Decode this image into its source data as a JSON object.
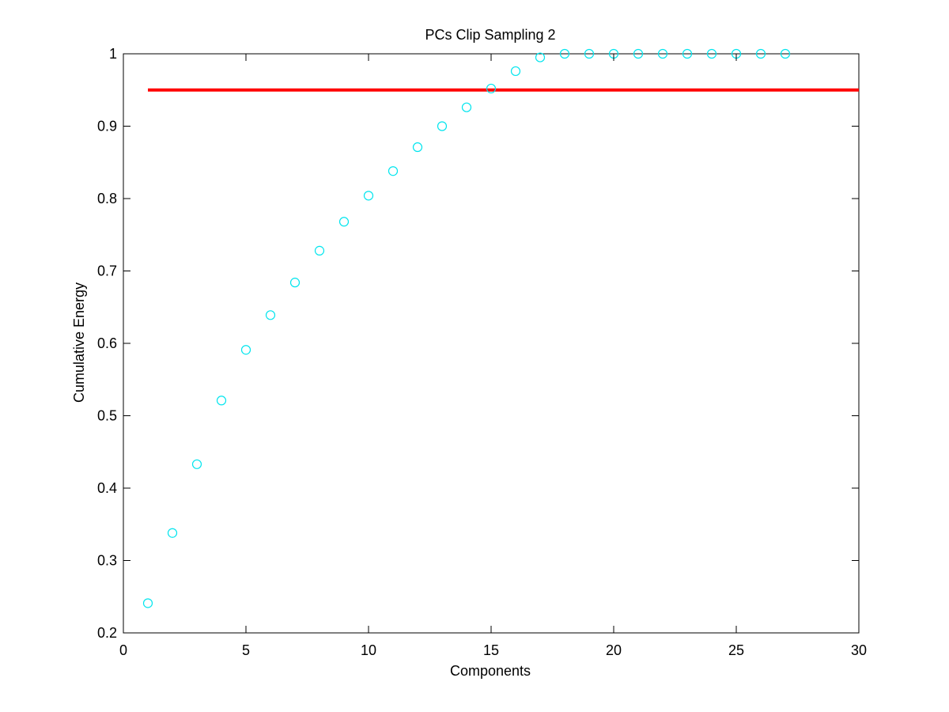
{
  "chart_data": {
    "type": "scatter",
    "title": "PCs Clip Sampling 2",
    "xlabel": "Components",
    "ylabel": "Cumulative Energy",
    "xlim": [
      0,
      30
    ],
    "ylim": [
      0.2,
      1
    ],
    "xticks": [
      0,
      5,
      10,
      15,
      20,
      25,
      30
    ],
    "xtick_labels": [
      "0",
      "5",
      "10",
      "15",
      "20",
      "25",
      "30"
    ],
    "yticks": [
      0.2,
      0.3,
      0.4,
      0.5,
      0.6,
      0.7,
      0.8,
      0.9,
      1
    ],
    "ytick_labels": [
      "0.2",
      "0.3",
      "0.4",
      "0.5",
      "0.6",
      "0.7",
      "0.8",
      "0.9",
      "1"
    ],
    "grid": false,
    "series": [
      {
        "marker": "circle",
        "color": "#00e5ee",
        "x": [
          1,
          2,
          3,
          4,
          5,
          6,
          7,
          8,
          9,
          10,
          11,
          12,
          13,
          14,
          15,
          16,
          17,
          18,
          19,
          20,
          21,
          22,
          23,
          24,
          25,
          26,
          27
        ],
        "y": [
          0.241,
          0.338,
          0.433,
          0.521,
          0.591,
          0.639,
          0.684,
          0.728,
          0.768,
          0.804,
          0.838,
          0.871,
          0.9,
          0.926,
          0.952,
          0.976,
          0.995,
          1.0,
          1.0,
          1.0,
          1.0,
          1.0,
          1.0,
          1.0,
          1.0,
          1.0,
          1.0
        ]
      }
    ],
    "reference_line": {
      "color": "#ff0000",
      "y": 0.95,
      "x": [
        1,
        30
      ]
    }
  }
}
